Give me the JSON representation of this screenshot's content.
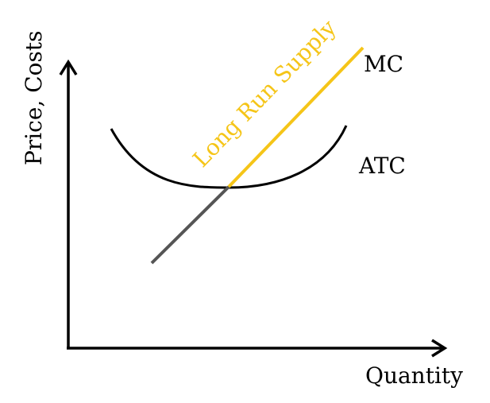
{
  "axes": {
    "x_label": "Quantity",
    "y_label": "Price, Costs"
  },
  "curves": {
    "mc_label": "MC",
    "atc_label": "ATC",
    "supply_label": "Long Run Supply"
  },
  "colors": {
    "axis": "#000000",
    "atc": "#000000",
    "mc_lower": "#555555",
    "supply": "#f5c518",
    "text": "#000000"
  }
}
